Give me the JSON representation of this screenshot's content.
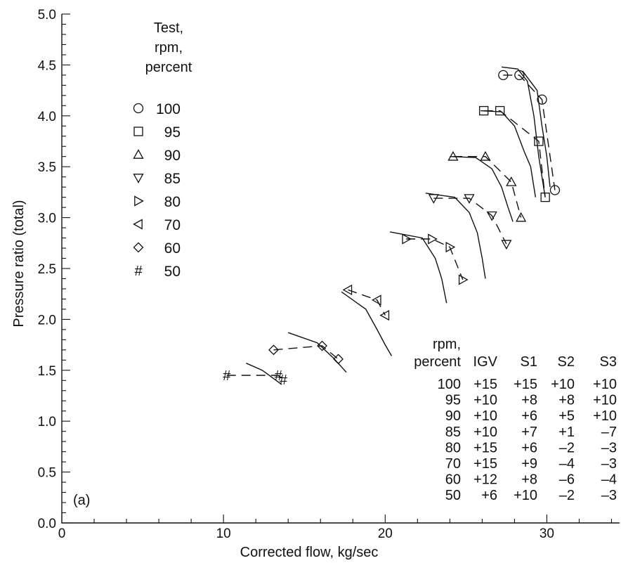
{
  "chart_data": {
    "type": "line",
    "xlabel": "Corrected flow, kg/sec",
    "ylabel": "Pressure ratio (total)",
    "xlim": [
      0,
      34.5
    ],
    "ylim": [
      0,
      5.0
    ],
    "xticks": [
      "0",
      "10",
      "20",
      "30"
    ],
    "yticks": [
      "0.0",
      "0.5",
      "1.0",
      "1.5",
      "2.0",
      "2.5",
      "3.0",
      "3.5",
      "4.0",
      "4.5",
      "5.0"
    ],
    "panel_label": "(a)",
    "legend": {
      "title_lines": [
        "Test,",
        "rpm,",
        "percent"
      ],
      "placement": "top-left"
    },
    "series": [
      {
        "name": "100",
        "marker": "circle",
        "test": [
          [
            27.3,
            4.4
          ],
          [
            28.3,
            4.4
          ],
          [
            29.7,
            4.16
          ],
          [
            30.5,
            3.27
          ]
        ],
        "sim_a": [
          [
            27.2,
            4.48
          ],
          [
            28.2,
            4.46
          ],
          [
            28.8,
            4.34
          ],
          [
            29.2,
            4.0
          ],
          [
            29.5,
            3.6
          ],
          [
            29.9,
            3.2
          ]
        ],
        "sim_b": [
          [
            28.5,
            4.44
          ],
          [
            29.4,
            4.25
          ],
          [
            29.7,
            3.9
          ],
          [
            30.0,
            3.6
          ],
          [
            30.2,
            3.3
          ]
        ]
      },
      {
        "name": "95",
        "marker": "square",
        "test": [
          [
            26.1,
            4.05
          ],
          [
            27.1,
            4.05
          ],
          [
            29.5,
            3.75
          ],
          [
            29.9,
            3.2
          ]
        ],
        "sim": [
          [
            25.9,
            4.05
          ],
          [
            27.2,
            4.04
          ],
          [
            28.0,
            3.9
          ],
          [
            28.6,
            3.65
          ],
          [
            29.0,
            3.5
          ],
          [
            29.3,
            3.2
          ]
        ]
      },
      {
        "name": "90",
        "marker": "triangle-up",
        "test": [
          [
            24.2,
            3.6
          ],
          [
            26.2,
            3.6
          ],
          [
            27.8,
            3.35
          ],
          [
            28.4,
            3.0
          ]
        ],
        "sim": [
          [
            24.0,
            3.6
          ],
          [
            25.6,
            3.59
          ],
          [
            26.6,
            3.48
          ],
          [
            27.2,
            3.3
          ],
          [
            27.6,
            3.1
          ],
          [
            27.9,
            2.96
          ]
        ]
      },
      {
        "name": "85",
        "marker": "triangle-down",
        "test": [
          [
            23.0,
            3.19
          ],
          [
            25.2,
            3.19
          ],
          [
            26.6,
            3.02
          ],
          [
            27.5,
            2.74
          ]
        ],
        "sim": [
          [
            22.5,
            3.24
          ],
          [
            24.3,
            3.2
          ],
          [
            25.2,
            3.05
          ],
          [
            25.7,
            2.85
          ],
          [
            26.0,
            2.6
          ],
          [
            26.2,
            2.4
          ]
        ]
      },
      {
        "name": "80",
        "marker": "triangle-right",
        "test": [
          [
            21.3,
            2.79
          ],
          [
            22.9,
            2.79
          ],
          [
            24.0,
            2.71
          ],
          [
            24.8,
            2.39
          ]
        ],
        "sim": [
          [
            20.3,
            2.86
          ],
          [
            22.3,
            2.8
          ],
          [
            23.1,
            2.6
          ],
          [
            23.5,
            2.4
          ],
          [
            23.8,
            2.16
          ]
        ]
      },
      {
        "name": "70",
        "marker": "triangle-left",
        "test": [
          [
            17.7,
            2.29
          ],
          [
            19.5,
            2.19
          ],
          [
            20.0,
            2.04
          ]
        ],
        "sim": [
          [
            17.3,
            2.27
          ],
          [
            18.8,
            2.1
          ],
          [
            19.5,
            1.9
          ],
          [
            20.0,
            1.75
          ],
          [
            20.4,
            1.64
          ]
        ]
      },
      {
        "name": "60",
        "marker": "diamond",
        "test": [
          [
            13.1,
            1.7
          ],
          [
            16.1,
            1.74
          ],
          [
            17.1,
            1.61
          ]
        ],
        "sim": [
          [
            14.0,
            1.87
          ],
          [
            15.8,
            1.77
          ],
          [
            16.8,
            1.62
          ],
          [
            17.6,
            1.48
          ]
        ]
      },
      {
        "name": "50",
        "marker": "hash",
        "test": [
          [
            10.2,
            1.45
          ],
          [
            13.4,
            1.45
          ],
          [
            13.7,
            1.41
          ]
        ],
        "sim": [
          [
            11.4,
            1.57
          ],
          [
            12.4,
            1.5
          ],
          [
            13.0,
            1.43
          ],
          [
            13.6,
            1.36
          ]
        ]
      }
    ],
    "table": {
      "header_line1": [
        "rpm,",
        "",
        "",
        "",
        ""
      ],
      "header_line2": [
        "percent",
        "IGV",
        "S1",
        "S2",
        "S3"
      ],
      "rows": [
        [
          "100",
          "+15",
          "+15",
          "+10",
          "+10"
        ],
        [
          "95",
          "+10",
          "+8",
          "+8",
          "+10"
        ],
        [
          "90",
          "+10",
          "+6",
          "+5",
          "+10"
        ],
        [
          "85",
          "+10",
          "+7",
          "+1",
          "–7"
        ],
        [
          "80",
          "+15",
          "+6",
          "–2",
          "–3"
        ],
        [
          "70",
          "+15",
          "+9",
          "–4",
          "–3"
        ],
        [
          "60",
          "+12",
          "+8",
          "–6",
          "–4"
        ],
        [
          "50",
          "+6",
          "+10",
          "–2",
          "–3"
        ]
      ]
    }
  }
}
